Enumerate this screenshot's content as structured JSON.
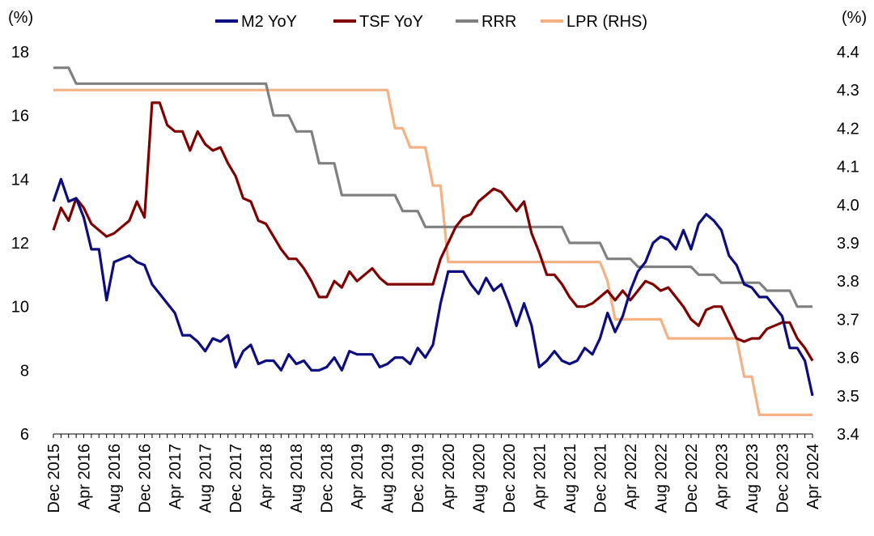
{
  "chart_data": {
    "type": "line",
    "left_axis": {
      "unit": "(%)",
      "range": [
        6,
        18
      ],
      "ticks": [
        6,
        8,
        10,
        12,
        14,
        16,
        18
      ]
    },
    "right_axis": {
      "unit": "(%)",
      "range": [
        3.4,
        4.4
      ],
      "ticks": [
        3.4,
        3.5,
        3.6,
        3.7,
        3.8,
        3.9,
        4.0,
        4.1,
        4.2,
        4.3,
        4.4
      ]
    },
    "x_range": [
      "2015-12",
      "2024-04"
    ],
    "x_tick_labels": [
      "Dec 2015",
      "Apr 2016",
      "Aug 2016",
      "Dec 2016",
      "Apr 2017",
      "Aug 2017",
      "Dec 2017",
      "Apr 2018",
      "Aug 2018",
      "Dec 2018",
      "Apr 2019",
      "Aug 2019",
      "Dec 2019",
      "Apr 2020",
      "Aug 2020",
      "Dec 2020",
      "Apr 2021",
      "Aug 2021",
      "Dec 2021",
      "Apr 2022",
      "Aug 2022",
      "Dec 2022",
      "Apr 2023",
      "Aug 2023",
      "Dec 2023",
      "Apr 2024"
    ],
    "legend": "top",
    "grid": false,
    "series": [
      {
        "name": "M2 YoY",
        "axis": "left",
        "color": "#0d0d80",
        "points": [
          [
            "2015-12",
            13.3
          ],
          [
            "2016-01",
            14.0
          ],
          [
            "2016-02",
            13.3
          ],
          [
            "2016-03",
            13.4
          ],
          [
            "2016-04",
            12.8
          ],
          [
            "2016-05",
            11.8
          ],
          [
            "2016-06",
            11.8
          ],
          [
            "2016-07",
            10.2
          ],
          [
            "2016-08",
            11.4
          ],
          [
            "2016-09",
            11.5
          ],
          [
            "2016-10",
            11.6
          ],
          [
            "2016-11",
            11.4
          ],
          [
            "2016-12",
            11.3
          ],
          [
            "2017-01",
            10.7
          ],
          [
            "2017-02",
            10.4
          ],
          [
            "2017-03",
            10.1
          ],
          [
            "2017-04",
            9.8
          ],
          [
            "2017-05",
            9.1
          ],
          [
            "2017-06",
            9.1
          ],
          [
            "2017-07",
            8.9
          ],
          [
            "2017-08",
            8.6
          ],
          [
            "2017-09",
            9.0
          ],
          [
            "2017-10",
            8.9
          ],
          [
            "2017-11",
            9.1
          ],
          [
            "2017-12",
            8.1
          ],
          [
            "2018-01",
            8.6
          ],
          [
            "2018-02",
            8.8
          ],
          [
            "2018-03",
            8.2
          ],
          [
            "2018-04",
            8.3
          ],
          [
            "2018-05",
            8.3
          ],
          [
            "2018-06",
            8.0
          ],
          [
            "2018-07",
            8.5
          ],
          [
            "2018-08",
            8.2
          ],
          [
            "2018-09",
            8.3
          ],
          [
            "2018-10",
            8.0
          ],
          [
            "2018-11",
            8.0
          ],
          [
            "2018-12",
            8.1
          ],
          [
            "2019-01",
            8.4
          ],
          [
            "2019-02",
            8.0
          ],
          [
            "2019-03",
            8.6
          ],
          [
            "2019-04",
            8.5
          ],
          [
            "2019-05",
            8.5
          ],
          [
            "2019-06",
            8.5
          ],
          [
            "2019-07",
            8.1
          ],
          [
            "2019-08",
            8.2
          ],
          [
            "2019-09",
            8.4
          ],
          [
            "2019-10",
            8.4
          ],
          [
            "2019-11",
            8.2
          ],
          [
            "2019-12",
            8.7
          ],
          [
            "2020-01",
            8.4
          ],
          [
            "2020-02",
            8.8
          ],
          [
            "2020-03",
            10.1
          ],
          [
            "2020-04",
            11.1
          ],
          [
            "2020-05",
            11.1
          ],
          [
            "2020-06",
            11.1
          ],
          [
            "2020-07",
            10.7
          ],
          [
            "2020-08",
            10.4
          ],
          [
            "2020-09",
            10.9
          ],
          [
            "2020-10",
            10.5
          ],
          [
            "2020-11",
            10.7
          ],
          [
            "2020-12",
            10.1
          ],
          [
            "2021-01",
            9.4
          ],
          [
            "2021-02",
            10.1
          ],
          [
            "2021-03",
            9.4
          ],
          [
            "2021-04",
            8.1
          ],
          [
            "2021-05",
            8.3
          ],
          [
            "2021-06",
            8.6
          ],
          [
            "2021-07",
            8.3
          ],
          [
            "2021-08",
            8.2
          ],
          [
            "2021-09",
            8.3
          ],
          [
            "2021-10",
            8.7
          ],
          [
            "2021-11",
            8.5
          ],
          [
            "2021-12",
            9.0
          ],
          [
            "2022-01",
            9.8
          ],
          [
            "2022-02",
            9.2
          ],
          [
            "2022-03",
            9.7
          ],
          [
            "2022-04",
            10.5
          ],
          [
            "2022-05",
            11.1
          ],
          [
            "2022-06",
            11.4
          ],
          [
            "2022-07",
            12.0
          ],
          [
            "2022-08",
            12.2
          ],
          [
            "2022-09",
            12.1
          ],
          [
            "2022-10",
            11.8
          ],
          [
            "2022-11",
            12.4
          ],
          [
            "2022-12",
            11.8
          ],
          [
            "2023-01",
            12.6
          ],
          [
            "2023-02",
            12.9
          ],
          [
            "2023-03",
            12.7
          ],
          [
            "2023-04",
            12.4
          ],
          [
            "2023-05",
            11.6
          ],
          [
            "2023-06",
            11.3
          ],
          [
            "2023-07",
            10.7
          ],
          [
            "2023-08",
            10.6
          ],
          [
            "2023-09",
            10.3
          ],
          [
            "2023-10",
            10.3
          ],
          [
            "2023-11",
            10.0
          ],
          [
            "2023-12",
            9.7
          ],
          [
            "2024-01",
            8.7
          ],
          [
            "2024-02",
            8.7
          ],
          [
            "2024-03",
            8.3
          ],
          [
            "2024-04",
            7.2
          ]
        ]
      },
      {
        "name": "TSF YoY",
        "axis": "left",
        "color": "#800000",
        "points": [
          [
            "2015-12",
            12.4
          ],
          [
            "2016-01",
            13.1
          ],
          [
            "2016-02",
            12.7
          ],
          [
            "2016-03",
            13.4
          ],
          [
            "2016-04",
            13.1
          ],
          [
            "2016-05",
            12.6
          ],
          [
            "2016-06",
            12.4
          ],
          [
            "2016-07",
            12.2
          ],
          [
            "2016-08",
            12.3
          ],
          [
            "2016-09",
            12.5
          ],
          [
            "2016-10",
            12.7
          ],
          [
            "2016-11",
            13.3
          ],
          [
            "2016-12",
            12.8
          ],
          [
            "2017-01",
            16.4
          ],
          [
            "2017-02",
            16.4
          ],
          [
            "2017-03",
            15.7
          ],
          [
            "2017-04",
            15.5
          ],
          [
            "2017-05",
            15.5
          ],
          [
            "2017-06",
            14.9
          ],
          [
            "2017-07",
            15.5
          ],
          [
            "2017-08",
            15.1
          ],
          [
            "2017-09",
            14.9
          ],
          [
            "2017-10",
            15.0
          ],
          [
            "2017-11",
            14.5
          ],
          [
            "2017-12",
            14.1
          ],
          [
            "2018-01",
            13.4
          ],
          [
            "2018-02",
            13.3
          ],
          [
            "2018-03",
            12.7
          ],
          [
            "2018-04",
            12.6
          ],
          [
            "2018-05",
            12.2
          ],
          [
            "2018-06",
            11.8
          ],
          [
            "2018-07",
            11.5
          ],
          [
            "2018-08",
            11.5
          ],
          [
            "2018-09",
            11.2
          ],
          [
            "2018-10",
            10.8
          ],
          [
            "2018-11",
            10.3
          ],
          [
            "2018-12",
            10.3
          ],
          [
            "2019-01",
            10.8
          ],
          [
            "2019-02",
            10.6
          ],
          [
            "2019-03",
            11.1
          ],
          [
            "2019-04",
            10.8
          ],
          [
            "2019-05",
            11.0
          ],
          [
            "2019-06",
            11.2
          ],
          [
            "2019-07",
            10.9
          ],
          [
            "2019-08",
            10.7
          ],
          [
            "2019-09",
            10.7
          ],
          [
            "2019-10",
            10.7
          ],
          [
            "2019-11",
            10.7
          ],
          [
            "2019-12",
            10.7
          ],
          [
            "2020-01",
            10.7
          ],
          [
            "2020-02",
            10.7
          ],
          [
            "2020-03",
            11.5
          ],
          [
            "2020-04",
            12.0
          ],
          [
            "2020-05",
            12.5
          ],
          [
            "2020-06",
            12.8
          ],
          [
            "2020-07",
            12.9
          ],
          [
            "2020-08",
            13.3
          ],
          [
            "2020-09",
            13.5
          ],
          [
            "2020-10",
            13.7
          ],
          [
            "2020-11",
            13.6
          ],
          [
            "2020-12",
            13.3
          ],
          [
            "2021-01",
            13.0
          ],
          [
            "2021-02",
            13.3
          ],
          [
            "2021-03",
            12.3
          ],
          [
            "2021-04",
            11.7
          ],
          [
            "2021-05",
            11.0
          ],
          [
            "2021-06",
            11.0
          ],
          [
            "2021-07",
            10.7
          ],
          [
            "2021-08",
            10.3
          ],
          [
            "2021-09",
            10.0
          ],
          [
            "2021-10",
            10.0
          ],
          [
            "2021-11",
            10.1
          ],
          [
            "2021-12",
            10.3
          ],
          [
            "2022-01",
            10.5
          ],
          [
            "2022-02",
            10.2
          ],
          [
            "2022-03",
            10.5
          ],
          [
            "2022-04",
            10.2
          ],
          [
            "2022-05",
            10.5
          ],
          [
            "2022-06",
            10.8
          ],
          [
            "2022-07",
            10.7
          ],
          [
            "2022-08",
            10.5
          ],
          [
            "2022-09",
            10.6
          ],
          [
            "2022-10",
            10.3
          ],
          [
            "2022-11",
            10.0
          ],
          [
            "2022-12",
            9.6
          ],
          [
            "2023-01",
            9.4
          ],
          [
            "2023-02",
            9.9
          ],
          [
            "2023-03",
            10.0
          ],
          [
            "2023-04",
            10.0
          ],
          [
            "2023-05",
            9.5
          ],
          [
            "2023-06",
            9.0
          ],
          [
            "2023-07",
            8.9
          ],
          [
            "2023-08",
            9.0
          ],
          [
            "2023-09",
            9.0
          ],
          [
            "2023-10",
            9.3
          ],
          [
            "2023-11",
            9.4
          ],
          [
            "2023-12",
            9.5
          ],
          [
            "2024-01",
            9.5
          ],
          [
            "2024-02",
            9.0
          ],
          [
            "2024-03",
            8.7
          ],
          [
            "2024-04",
            8.3
          ]
        ]
      },
      {
        "name": "RRR",
        "axis": "left",
        "color": "#808080",
        "points": [
          [
            "2015-12",
            17.5
          ],
          [
            "2016-02",
            17.5
          ],
          [
            "2016-03",
            17.0
          ],
          [
            "2018-04",
            17.0
          ],
          [
            "2018-05",
            16.0
          ],
          [
            "2018-07",
            16.0
          ],
          [
            "2018-08",
            15.5
          ],
          [
            "2018-10",
            15.5
          ],
          [
            "2018-11",
            14.5
          ],
          [
            "2019-01",
            14.5
          ],
          [
            "2019-02",
            13.5
          ],
          [
            "2019-09",
            13.5
          ],
          [
            "2019-10",
            13.0
          ],
          [
            "2019-12",
            13.0
          ],
          [
            "2020-01",
            12.5
          ],
          [
            "2021-07",
            12.5
          ],
          [
            "2021-08",
            12.0
          ],
          [
            "2021-12",
            12.0
          ],
          [
            "2022-01",
            11.5
          ],
          [
            "2022-04",
            11.5
          ],
          [
            "2022-05",
            11.25
          ],
          [
            "2022-12",
            11.25
          ],
          [
            "2023-01",
            11.0
          ],
          [
            "2023-03",
            11.0
          ],
          [
            "2023-04",
            10.75
          ],
          [
            "2023-09",
            10.75
          ],
          [
            "2023-10",
            10.5
          ],
          [
            "2024-01",
            10.5
          ],
          [
            "2024-02",
            10.0
          ],
          [
            "2024-04",
            10.0
          ]
        ]
      },
      {
        "name": "LPR (RHS)",
        "axis": "right",
        "color": "#f4b183",
        "points": [
          [
            "2015-12",
            4.3
          ],
          [
            "2019-08",
            4.3
          ],
          [
            "2019-09",
            4.2
          ],
          [
            "2019-10",
            4.2
          ],
          [
            "2019-11",
            4.15
          ],
          [
            "2020-01",
            4.15
          ],
          [
            "2020-02",
            4.05
          ],
          [
            "2020-03",
            4.05
          ],
          [
            "2020-04",
            3.85
          ],
          [
            "2021-12",
            3.85
          ],
          [
            "2022-01",
            3.8
          ],
          [
            "2022-02",
            3.7
          ],
          [
            "2022-08",
            3.7
          ],
          [
            "2022-09",
            3.65
          ],
          [
            "2023-06",
            3.65
          ],
          [
            "2023-07",
            3.55
          ],
          [
            "2023-08",
            3.55
          ],
          [
            "2023-09",
            3.45
          ],
          [
            "2024-04",
            3.45
          ]
        ]
      }
    ]
  }
}
